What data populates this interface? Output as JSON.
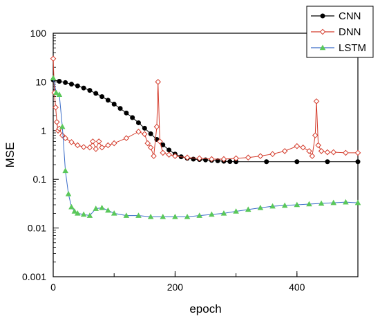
{
  "chart_data": {
    "type": "line",
    "xlabel": "epoch",
    "ylabel": "MSE",
    "xlim": [
      0,
      500
    ],
    "ylim": [
      0.001,
      100
    ],
    "y_scale": "log",
    "x_ticks": [
      0,
      200,
      400
    ],
    "y_ticks": [
      {
        "value": 0.001,
        "label": "0.001"
      },
      {
        "value": 0.01,
        "label": "0.01"
      },
      {
        "value": 0.1,
        "label": "0.1"
      },
      {
        "value": 1,
        "label": "1"
      },
      {
        "value": 10,
        "label": "10"
      },
      {
        "value": 100,
        "label": "100"
      }
    ],
    "grid": false,
    "legend_position": "top-right",
    "series": [
      {
        "name": "CNN",
        "color": "#000000",
        "marker": "circle",
        "x": [
          0,
          10,
          20,
          30,
          40,
          50,
          60,
          70,
          80,
          90,
          100,
          110,
          120,
          130,
          140,
          150,
          160,
          170,
          180,
          190,
          200,
          210,
          220,
          230,
          240,
          250,
          260,
          270,
          280,
          290,
          300,
          350,
          400,
          450,
          500
        ],
        "y": [
          11,
          10.3,
          9.7,
          9.0,
          8.3,
          7.5,
          6.7,
          5.8,
          5.0,
          4.2,
          3.5,
          2.85,
          2.3,
          1.85,
          1.45,
          1.12,
          0.86,
          0.66,
          0.51,
          0.4,
          0.33,
          0.29,
          0.27,
          0.26,
          0.255,
          0.25,
          0.245,
          0.24,
          0.235,
          0.232,
          0.23,
          0.23,
          0.23,
          0.23,
          0.23
        ]
      },
      {
        "name": "DNN",
        "color": "#d43c2c",
        "marker": "diamond",
        "x": [
          0,
          2,
          4,
          6,
          8,
          10,
          15,
          20,
          30,
          40,
          50,
          60,
          65,
          70,
          75,
          80,
          90,
          100,
          120,
          140,
          150,
          155,
          160,
          165,
          170,
          172,
          175,
          180,
          190,
          200,
          220,
          240,
          260,
          280,
          300,
          320,
          340,
          360,
          380,
          400,
          410,
          420,
          425,
          430,
          432,
          435,
          440,
          450,
          460,
          480,
          500
        ],
        "y": [
          30,
          6,
          3,
          1.5,
          1.0,
          1.1,
          0.8,
          0.7,
          0.58,
          0.5,
          0.46,
          0.45,
          0.6,
          0.42,
          0.6,
          0.45,
          0.5,
          0.55,
          0.7,
          0.95,
          0.85,
          0.55,
          0.45,
          0.3,
          1.2,
          10,
          0.6,
          0.35,
          0.32,
          0.3,
          0.28,
          0.27,
          0.26,
          0.26,
          0.27,
          0.28,
          0.3,
          0.33,
          0.38,
          0.48,
          0.45,
          0.38,
          0.3,
          0.8,
          4.0,
          0.5,
          0.38,
          0.36,
          0.36,
          0.35,
          0.35
        ]
      },
      {
        "name": "LSTM",
        "color": "#3a6cc8",
        "marker": "triangle",
        "x": [
          0,
          5,
          10,
          15,
          20,
          25,
          30,
          35,
          40,
          50,
          60,
          70,
          80,
          90,
          100,
          120,
          140,
          160,
          180,
          200,
          220,
          240,
          260,
          280,
          300,
          320,
          340,
          360,
          380,
          400,
          420,
          440,
          460,
          480,
          500
        ],
        "y": [
          12,
          6,
          5.5,
          1.2,
          0.15,
          0.05,
          0.027,
          0.022,
          0.02,
          0.019,
          0.018,
          0.025,
          0.026,
          0.023,
          0.02,
          0.018,
          0.018,
          0.017,
          0.017,
          0.017,
          0.017,
          0.018,
          0.019,
          0.02,
          0.022,
          0.024,
          0.026,
          0.028,
          0.029,
          0.03,
          0.031,
          0.032,
          0.033,
          0.034,
          0.033
        ]
      }
    ]
  }
}
